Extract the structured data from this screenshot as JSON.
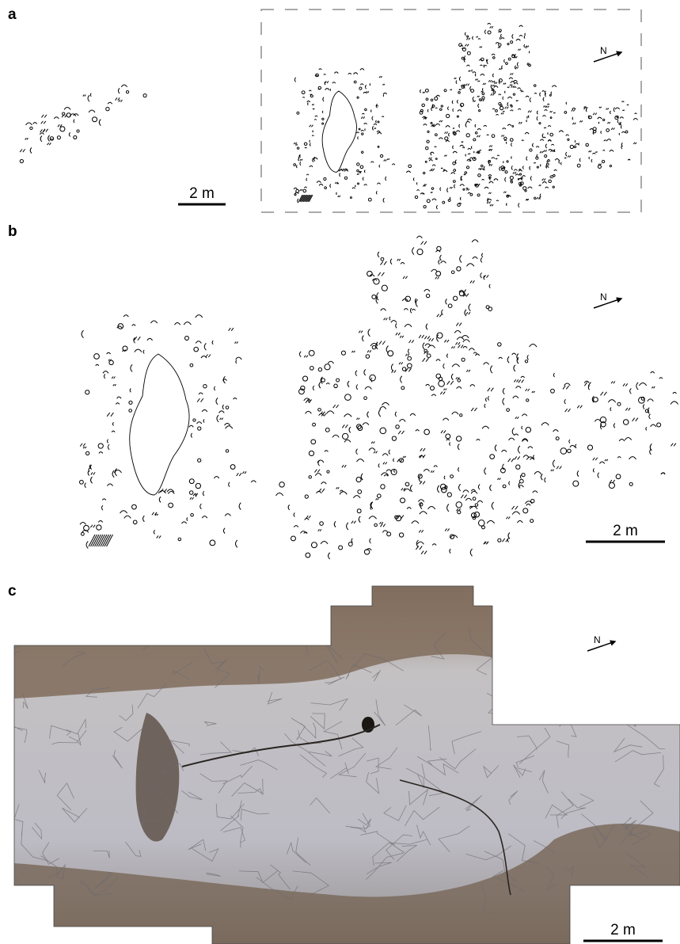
{
  "panels": [
    {
      "label": "a",
      "scale_bar": "2 m",
      "north": "N"
    },
    {
      "label": "b",
      "scale_bar": "2 m",
      "north": "N"
    },
    {
      "label": "c",
      "scale_bar": "2 m",
      "north": "N"
    }
  ]
}
